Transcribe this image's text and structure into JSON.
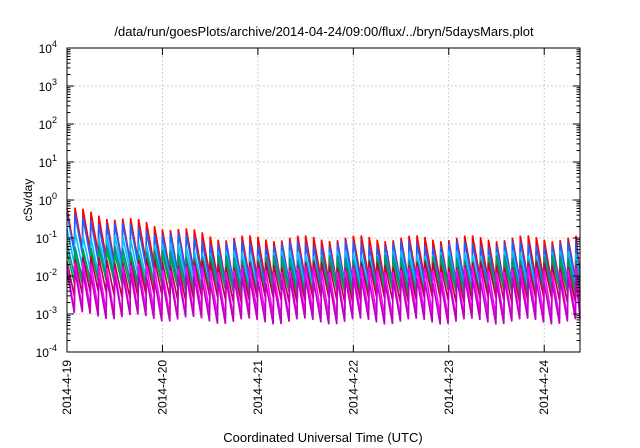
{
  "chart_data": {
    "type": "line",
    "title": "/data/run/goesPlots/archive/2014-04-24/09:00/flux/../bryn/5daysMars.plot",
    "xlabel": "Coordinated Universal Time (UTC)",
    "ylabel": "cSv/day",
    "x_ticks": [
      "2014-4-19",
      "2014-4-20",
      "2014-4-21",
      "2014-4-22",
      "2014-4-23",
      "2014-4-24"
    ],
    "x_range": [
      "2014-04-19T00:00",
      "2014-04-24T09:00"
    ],
    "y_scale": "log",
    "ylim": [
      0.0001,
      10000
    ],
    "y_ticks": [
      {
        "base": "10",
        "exp": "-4"
      },
      {
        "base": "10",
        "exp": "-3"
      },
      {
        "base": "10",
        "exp": "-2"
      },
      {
        "base": "10",
        "exp": "-1"
      },
      {
        "base": "10",
        "exp": "0"
      },
      {
        "base": "10",
        "exp": "1"
      },
      {
        "base": "10",
        "exp": "2"
      },
      {
        "base": "10",
        "exp": "3"
      },
      {
        "base": "10",
        "exp": "4"
      }
    ],
    "grid": true,
    "legend": "none",
    "sawtooth_period_hours": 2,
    "series": [
      {
        "color": "#ff0000",
        "peak_start": 0.6,
        "peak_end": 0.1,
        "trough_ratio": 0.08
      },
      {
        "color": "#1f5fff",
        "peak_start": 0.4,
        "peak_end": 0.07,
        "trough_ratio": 0.09
      },
      {
        "color": "#00c0ff",
        "peak_start": 0.15,
        "peak_end": 0.04,
        "trough_ratio": 0.12
      },
      {
        "color": "#009090",
        "peak_start": 0.07,
        "peak_end": 0.03,
        "trough_ratio": 0.15
      },
      {
        "color": "#00a050",
        "peak_start": 0.05,
        "peak_end": 0.025,
        "trough_ratio": 0.15
      },
      {
        "color": "#c00040",
        "peak_start": 0.03,
        "peak_end": 0.02,
        "trough_ratio": 0.12
      },
      {
        "color": "#ff00ff",
        "peak_start": 0.02,
        "peak_end": 0.015,
        "trough_ratio": 0.06
      },
      {
        "color": "#c000c0",
        "peak_start": 0.012,
        "peak_end": 0.008,
        "trough_ratio": 0.08
      }
    ]
  }
}
